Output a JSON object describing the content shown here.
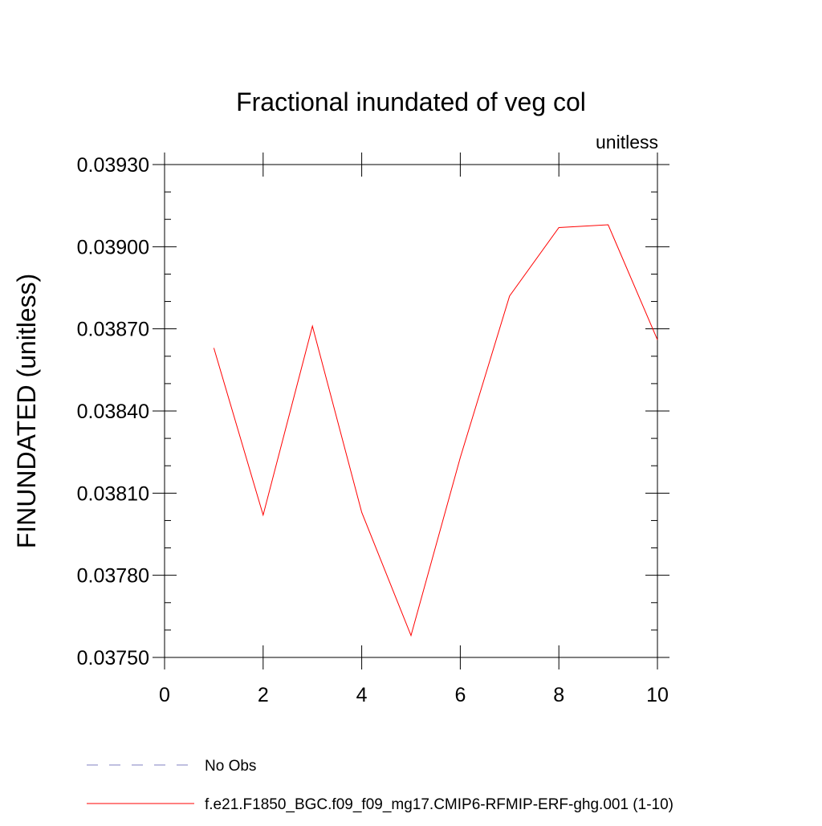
{
  "chart_data": {
    "type": "line",
    "title": "Fractional inundated of veg col",
    "subtitle": "unitless",
    "xlabel": "",
    "ylabel": "FINUNDATED  (unitless)",
    "xlim": [
      0,
      10
    ],
    "ylim": [
      0.0375,
      0.0393
    ],
    "xticks": [
      0,
      2,
      4,
      6,
      8,
      10
    ],
    "xtick_labels": [
      "0",
      "2",
      "4",
      "6",
      "8",
      "10"
    ],
    "yticks": [
      0.0375,
      0.0378,
      0.0381,
      0.0384,
      0.0387,
      0.039,
      0.0393
    ],
    "ytick_labels": [
      "0.03750",
      "0.03780",
      "0.03810",
      "0.03840",
      "0.03870",
      "0.03900",
      "0.03930"
    ],
    "grid": false,
    "legend_position": "bottom-left",
    "series": [
      {
        "name": "No Obs",
        "color": "#8080c0",
        "dash": "dashed",
        "x": [],
        "y": []
      },
      {
        "name": "f.e21.F1850_BGC.f09_f09_mg17.CMIP6-RFMIP-ERF-ghg.001 (1-10)",
        "color": "#ff0000",
        "dash": "solid",
        "x": [
          1,
          2,
          3,
          4,
          5,
          6,
          7,
          8,
          9,
          10
        ],
        "y": [
          0.03863,
          0.03802,
          0.03871,
          0.03803,
          0.03758,
          0.03823,
          0.03882,
          0.03907,
          0.03908,
          0.03866
        ]
      }
    ]
  }
}
